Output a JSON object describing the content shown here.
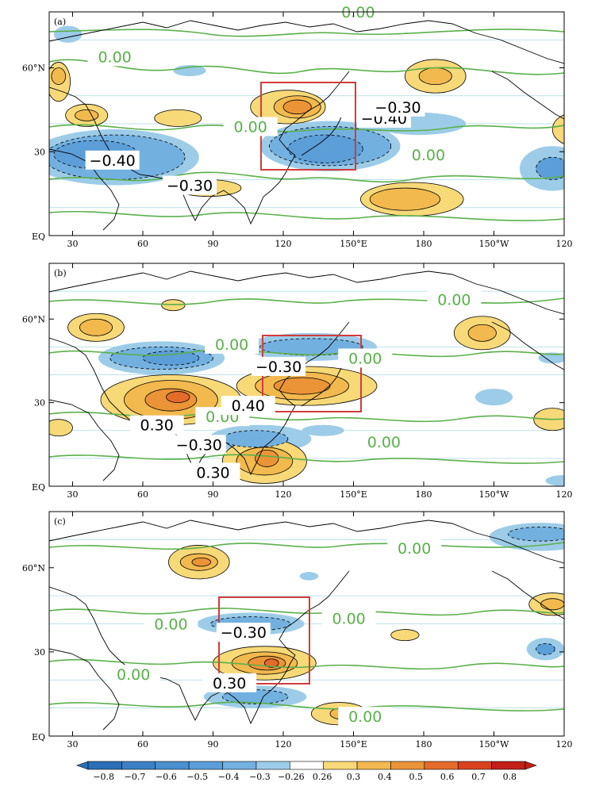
{
  "chart_data": [
    {
      "type": "heatmap",
      "panel_label": "(a)",
      "x_ticks": [
        "30",
        "60",
        "90",
        "120",
        "150°E",
        "180",
        "150°W",
        "120"
      ],
      "y_ticks": [
        "60°N",
        "30",
        "EQ"
      ],
      "box": {
        "lon": [
          110,
          150
        ],
        "lat": [
          23,
          55
        ]
      },
      "contour_labels": [
        {
          "text": "0.00",
          "lon": 152,
          "lat": 80,
          "color": "green"
        },
        {
          "text": "0.00",
          "lon": 48,
          "lat": 64,
          "color": "green"
        },
        {
          "text": "0.00",
          "lon": 106,
          "lat": 39,
          "color": "green"
        },
        {
          "text": "0.00",
          "lon": 182,
          "lat": 29,
          "color": "green"
        },
        {
          "text": "−0.40",
          "lon": 47,
          "lat": 27,
          "color": "black"
        },
        {
          "text": "−0.30",
          "lon": 80,
          "lat": 18,
          "color": "black"
        },
        {
          "text": "−0.40",
          "lon": 163,
          "lat": 42,
          "color": "black"
        },
        {
          "text": "−0.30",
          "lon": 169,
          "lat": 46,
          "color": "black"
        }
      ],
      "features": [
        {
          "v": 0.4,
          "lon": 126,
          "lat": 46,
          "rx": 10,
          "ry": 4
        },
        {
          "v": 0.5,
          "lon": 126,
          "lat": 46,
          "rx": 6,
          "ry": 2.5
        },
        {
          "v": 0.3,
          "lon": 122,
          "lat": 46,
          "rx": 16,
          "ry": 6
        },
        {
          "v": 0.3,
          "lon": 185,
          "lat": 57,
          "rx": 13,
          "ry": 6
        },
        {
          "v": 0.4,
          "lon": 185,
          "lat": 57,
          "rx": 7,
          "ry": 3
        },
        {
          "v": 0.3,
          "lon": 175,
          "lat": 13,
          "rx": 22,
          "ry": 6
        },
        {
          "v": 0.4,
          "lon": 172,
          "lat": 13,
          "rx": 15,
          "ry": 4
        },
        {
          "v": 0.3,
          "lon": 36,
          "lat": 43,
          "rx": 9,
          "ry": 4
        },
        {
          "v": 0.4,
          "lon": 36,
          "lat": 43,
          "rx": 5,
          "ry": 2
        },
        {
          "v": 0.3,
          "lon": 24,
          "lat": 55,
          "rx": 5,
          "ry": 7
        },
        {
          "v": 0.4,
          "lon": 24,
          "lat": 57,
          "rx": 3,
          "ry": 3
        },
        {
          "v": 0.3,
          "lon": 75,
          "lat": 42,
          "rx": 10,
          "ry": 3
        },
        {
          "v": 0.3,
          "lon": 245,
          "lat": 38,
          "rx": 10,
          "ry": 6
        },
        {
          "v": 0.3,
          "lon": 88,
          "lat": 17,
          "rx": 14,
          "ry": 3
        },
        {
          "v": -0.26,
          "lon": 140,
          "lat": 32,
          "rx": 30,
          "ry": 9
        },
        {
          "v": -0.3,
          "lon": 140,
          "lat": 32,
          "rx": 26,
          "ry": 7
        },
        {
          "v": -0.4,
          "lon": 138,
          "lat": 31,
          "rx": 16,
          "ry": 5
        },
        {
          "v": -0.26,
          "lon": 48,
          "lat": 28,
          "rx": 36,
          "ry": 10
        },
        {
          "v": -0.3,
          "lon": 48,
          "lat": 28,
          "rx": 30,
          "ry": 8
        },
        {
          "v": -0.4,
          "lon": 40,
          "lat": 29,
          "rx": 18,
          "ry": 5
        },
        {
          "v": -0.26,
          "lon": 178,
          "lat": 40,
          "rx": 20,
          "ry": 4
        },
        {
          "v": -0.26,
          "lon": 235,
          "lat": 24,
          "rx": 14,
          "ry": 8
        },
        {
          "v": -0.4,
          "lon": 235,
          "lat": 24,
          "rx": 7,
          "ry": 4
        },
        {
          "v": -0.26,
          "lon": 80,
          "lat": 59,
          "rx": 7,
          "ry": 2
        },
        {
          "v": -0.26,
          "lon": 28,
          "lat": 72,
          "rx": 6,
          "ry": 3
        }
      ]
    },
    {
      "type": "heatmap",
      "panel_label": "(b)",
      "x_ticks": [
        "30",
        "60",
        "90",
        "120",
        "150°E",
        "180",
        "150°W",
        "120"
      ],
      "y_ticks": [
        "60°N",
        "30",
        "EQ"
      ],
      "box": {
        "lon": [
          112,
          152
        ],
        "lat": [
          26,
          55
        ]
      },
      "contour_labels": [
        {
          "text": "0.00",
          "lon": 193,
          "lat": 67,
          "color": "green"
        },
        {
          "text": "0.00",
          "lon": 98,
          "lat": 51,
          "color": "green"
        },
        {
          "text": "0.00",
          "lon": 155,
          "lat": 46,
          "color": "green"
        },
        {
          "text": "0.00",
          "lon": 94,
          "lat": 25,
          "color": "green"
        },
        {
          "text": "0.00",
          "lon": 163,
          "lat": 16,
          "color": "green"
        },
        {
          "text": "−0.30",
          "lon": 118,
          "lat": 43,
          "color": "black"
        },
        {
          "text": "0.40",
          "lon": 105,
          "lat": 29,
          "color": "black"
        },
        {
          "text": "0.30",
          "lon": 66,
          "lat": 22,
          "color": "black"
        },
        {
          "text": "−0.30",
          "lon": 84,
          "lat": 15,
          "color": "black"
        },
        {
          "text": "0.30",
          "lon": 90,
          "lat": 5,
          "color": "black"
        }
      ],
      "features": [
        {
          "v": 0.3,
          "lon": 72,
          "lat": 31,
          "rx": 30,
          "ry": 9
        },
        {
          "v": 0.4,
          "lon": 72,
          "lat": 31,
          "rx": 20,
          "ry": 7
        },
        {
          "v": 0.5,
          "lon": 72,
          "lat": 31,
          "rx": 11,
          "ry": 4
        },
        {
          "v": 0.6,
          "lon": 75,
          "lat": 32,
          "rx": 5,
          "ry": 2
        },
        {
          "v": 0.3,
          "lon": 130,
          "lat": 36,
          "rx": 30,
          "ry": 7
        },
        {
          "v": 0.4,
          "lon": 128,
          "lat": 36,
          "rx": 20,
          "ry": 5
        },
        {
          "v": 0.5,
          "lon": 128,
          "lat": 36,
          "rx": 12,
          "ry": 3
        },
        {
          "v": 0.3,
          "lon": 112,
          "lat": 9,
          "rx": 18,
          "ry": 8
        },
        {
          "v": 0.4,
          "lon": 112,
          "lat": 9,
          "rx": 12,
          "ry": 5
        },
        {
          "v": 0.5,
          "lon": 113,
          "lat": 10,
          "rx": 5,
          "ry": 3
        },
        {
          "v": 0.3,
          "lon": 205,
          "lat": 55,
          "rx": 12,
          "ry": 6
        },
        {
          "v": 0.4,
          "lon": 205,
          "lat": 55,
          "rx": 6,
          "ry": 3
        },
        {
          "v": 0.3,
          "lon": 40,
          "lat": 57,
          "rx": 12,
          "ry": 5
        },
        {
          "v": 0.4,
          "lon": 40,
          "lat": 57,
          "rx": 7,
          "ry": 3
        },
        {
          "v": 0.3,
          "lon": 73,
          "lat": 65,
          "rx": 5,
          "ry": 2
        },
        {
          "v": 0.3,
          "lon": 235,
          "lat": 24,
          "rx": 8,
          "ry": 4
        },
        {
          "v": 0.3,
          "lon": 24,
          "lat": 21,
          "rx": 6,
          "ry": 3
        },
        {
          "v": -0.26,
          "lon": 68,
          "lat": 46,
          "rx": 27,
          "ry": 6
        },
        {
          "v": -0.3,
          "lon": 68,
          "lat": 46,
          "rx": 22,
          "ry": 4
        },
        {
          "v": -0.4,
          "lon": 72,
          "lat": 46,
          "rx": 12,
          "ry": 2.5
        },
        {
          "v": -0.26,
          "lon": 132,
          "lat": 50,
          "rx": 28,
          "ry": 5
        },
        {
          "v": -0.3,
          "lon": 132,
          "lat": 50,
          "rx": 22,
          "ry": 3
        },
        {
          "v": -0.26,
          "lon": 110,
          "lat": 17,
          "rx": 22,
          "ry": 5
        },
        {
          "v": -0.3,
          "lon": 108,
          "lat": 17,
          "rx": 14,
          "ry": 3
        },
        {
          "v": -0.26,
          "lon": 210,
          "lat": 32,
          "rx": 8,
          "ry": 3
        },
        {
          "v": -0.26,
          "lon": 137,
          "lat": 20,
          "rx": 9,
          "ry": 2
        },
        {
          "v": -0.26,
          "lon": 240,
          "lat": 2,
          "rx": 8,
          "ry": 2
        },
        {
          "v": -0.26,
          "lon": 235,
          "lat": 46,
          "rx": 6,
          "ry": 2
        }
      ]
    },
    {
      "type": "heatmap",
      "panel_label": "(c)",
      "x_ticks": [
        "30",
        "60",
        "90",
        "120",
        "150°E",
        "180",
        "150°W",
        "120"
      ],
      "y_ticks": [
        "60°N",
        "30",
        "EQ"
      ],
      "box": {
        "lon": [
          92,
          130
        ],
        "lat": [
          17,
          46
        ]
      },
      "contour_labels": [
        {
          "text": "0.00",
          "lon": 176,
          "lat": 67,
          "color": "green"
        },
        {
          "text": "0.00",
          "lon": 72,
          "lat": 40,
          "color": "green"
        },
        {
          "text": "0.00",
          "lon": 148,
          "lat": 42,
          "color": "green"
        },
        {
          "text": "0.00",
          "lon": 56,
          "lat": 22,
          "color": "green"
        },
        {
          "text": "0.00",
          "lon": 155,
          "lat": 7,
          "color": "green"
        },
        {
          "text": "−0.30",
          "lon": 103,
          "lat": 37,
          "color": "black"
        },
        {
          "text": "0.30",
          "lon": 97,
          "lat": 19,
          "color": "black"
        }
      ],
      "features": [
        {
          "v": 0.3,
          "lon": 112,
          "lat": 26,
          "rx": 22,
          "ry": 6
        },
        {
          "v": 0.4,
          "lon": 112,
          "lat": 26,
          "rx": 14,
          "ry": 4
        },
        {
          "v": 0.5,
          "lon": 113,
          "lat": 26,
          "rx": 8,
          "ry": 2.5
        },
        {
          "v": 0.6,
          "lon": 115,
          "lat": 26,
          "rx": 3,
          "ry": 1.5
        },
        {
          "v": 0.3,
          "lon": 84,
          "lat": 62,
          "rx": 13,
          "ry": 6
        },
        {
          "v": 0.4,
          "lon": 84,
          "lat": 62,
          "rx": 8,
          "ry": 3
        },
        {
          "v": 0.5,
          "lon": 85,
          "lat": 62,
          "rx": 4,
          "ry": 1.5
        },
        {
          "v": 0.3,
          "lon": 144,
          "lat": 8,
          "rx": 12,
          "ry": 4
        },
        {
          "v": 0.4,
          "lon": 145,
          "lat": 8,
          "rx": 5,
          "ry": 2
        },
        {
          "v": 0.3,
          "lon": 235,
          "lat": 47,
          "rx": 10,
          "ry": 4
        },
        {
          "v": 0.4,
          "lon": 235,
          "lat": 47,
          "rx": 5,
          "ry": 2
        },
        {
          "v": 0.3,
          "lon": 172,
          "lat": 36,
          "rx": 6,
          "ry": 2
        },
        {
          "v": -0.26,
          "lon": 106,
          "lat": 40,
          "rx": 23,
          "ry": 4
        },
        {
          "v": -0.3,
          "lon": 106,
          "lat": 40,
          "rx": 17,
          "ry": 2.5
        },
        {
          "v": -0.26,
          "lon": 108,
          "lat": 14,
          "rx": 22,
          "ry": 4
        },
        {
          "v": -0.3,
          "lon": 108,
          "lat": 14,
          "rx": 14,
          "ry": 2.5
        },
        {
          "v": -0.26,
          "lon": 230,
          "lat": 71,
          "rx": 22,
          "ry": 5
        },
        {
          "v": -0.3,
          "lon": 230,
          "lat": 72,
          "rx": 14,
          "ry": 2.5
        },
        {
          "v": -0.26,
          "lon": 232,
          "lat": 31,
          "rx": 8,
          "ry": 4
        },
        {
          "v": -0.4,
          "lon": 232,
          "lat": 31,
          "rx": 4,
          "ry": 2
        },
        {
          "v": -0.26,
          "lon": 131,
          "lat": 57,
          "rx": 4,
          "ry": 1.5
        }
      ]
    }
  ],
  "colorbar": {
    "tick_labels": [
      "−0.8",
      "−0.7",
      "−0.6",
      "−0.5",
      "−0.4",
      "−0.3",
      "−0.26",
      "0.26",
      "0.3",
      "0.4",
      "0.5",
      "0.6",
      "0.7",
      "0.8"
    ],
    "colors": [
      "#2c6eb7",
      "#3b80c5",
      "#4a8fcf",
      "#5b9ed8",
      "#72b0e0",
      "#9ccce8",
      "#ffffff",
      "#f7d978",
      "#f2b94e",
      "#eb9437",
      "#e46b29",
      "#d8421f",
      "#c21f19"
    ]
  },
  "colors": {
    "zero_contour": "#5ab04a",
    "box": "#d23c3c",
    "coast": "#000000",
    "lat_grid": "#a9d8e4"
  }
}
